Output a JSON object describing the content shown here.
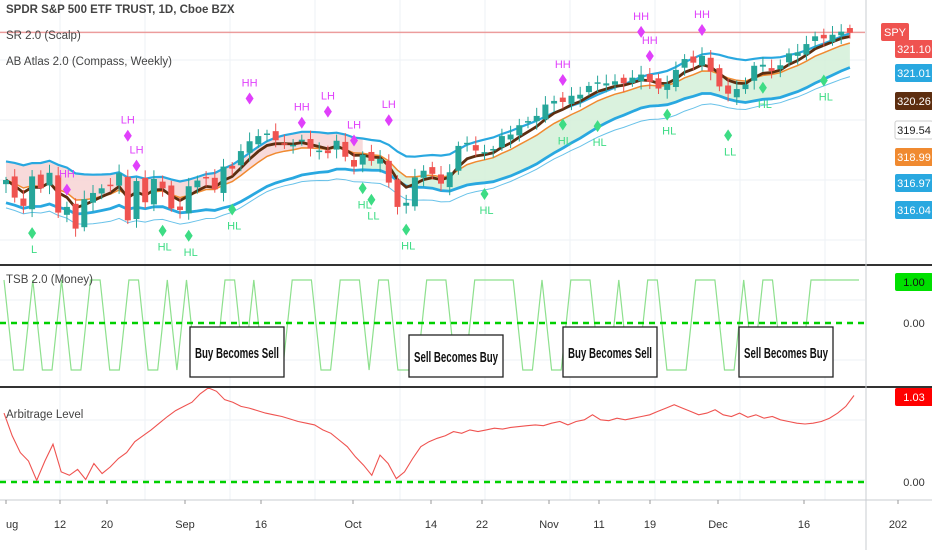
{
  "colors": {
    "up": "#26a69a",
    "down": "#ef5350",
    "pivot_high": "#e040fb",
    "pivot_low": "#3ddc84",
    "band_blue": "#29a8e0",
    "sma_dark": "#5d2e10",
    "ema_orange": "#f08a30",
    "green_dash": "#00d000",
    "tsb_line": "#8ee08e",
    "arb_line": "#ef5350",
    "fill_red": "#f7d3d3",
    "fill_green": "#d3f0d8"
  },
  "header": {
    "symbol_title": "SPDR S&P 500 ETF TRUST, 1D, Cboe BZX",
    "indicator_1": "SR 2.0 (Scalp)",
    "indicator_2": "AB Atlas 2.0 (Compass, Weekly)"
  },
  "panes": {
    "tsb_title": "TSB 2.0 (Money)",
    "arb_title": "Arbitrage Level"
  },
  "annotations": [
    "Buy Becomes Sell",
    "Sell Becomes Buy",
    "Buy Becomes Sell",
    "Sell Becomes Buy"
  ],
  "chart_data": {
    "type": "candlestick",
    "series_label": "SPY",
    "price_axis": {
      "ticks": [
        "321.10",
        "321.01",
        "320.26",
        "319.54",
        "318.99",
        "316.97",
        "316.04"
      ],
      "badges": [
        {
          "text": "SPY",
          "color": "#ef5350"
        },
        {
          "text": "321.10",
          "color": "#ef5350"
        },
        {
          "text": "321.01",
          "color": "#29a8e0"
        },
        {
          "text": "320.26",
          "color": "#5d2e10"
        },
        {
          "text": "319.54",
          "color": "#ffffff"
        },
        {
          "text": "318.99",
          "color": "#f08a30"
        },
        {
          "text": "316.97",
          "color": "#29a8e0"
        },
        {
          "text": "316.04",
          "color": "#29a8e0"
        }
      ]
    },
    "x_axis_labels": [
      "ug",
      "12",
      "20",
      "Sep",
      "16",
      "Oct",
      "14",
      "22",
      "Nov",
      "11",
      "19",
      "Dec",
      "16",
      "202"
    ],
    "close": [
      292.6,
      289.2,
      287.6,
      293.3,
      291.0,
      294.0,
      286.3,
      287.4,
      283.2,
      288.9,
      290.1,
      291.0,
      291.6,
      293.9,
      284.8,
      292.4,
      288.3,
      292.8,
      291.0,
      287.1,
      286.8,
      291.4,
      292.5,
      293.0,
      290.8,
      295.2,
      294.8,
      298.2,
      300.1,
      301.1,
      301.6,
      300.3,
      299.7,
      299.4,
      300.4,
      298.7,
      298.3,
      297.8,
      300.2,
      297.1,
      295.2,
      297.5,
      296.3,
      296.7,
      292.1,
      287.4,
      288.2,
      293.1,
      294.4,
      293.8,
      291.9,
      294.1,
      299.2,
      299.8,
      298.3,
      298.0,
      298.6,
      301.1,
      301.4,
      303.2,
      304.0,
      305.0,
      307.2,
      307.9,
      307.7,
      308.9,
      309.1,
      310.8,
      311.5,
      311.3,
      311.7,
      311.3,
      312.4,
      313.0,
      311.6,
      310.3,
      311.2,
      313.9,
      316.0,
      315.3,
      316.6,
      313.6,
      310.7,
      309.3,
      310.2,
      311.1,
      314.7,
      314.9,
      313.7,
      314.8,
      317.1,
      317.3,
      318.9,
      320.4,
      320.0,
      320.7,
      321.3,
      321.1
    ],
    "pivots": [
      {
        "type": "HH",
        "bar": 11
      },
      {
        "type": "LH",
        "bar": 22
      },
      {
        "type": "LH",
        "bar": 23
      },
      {
        "type": "HH",
        "bar": 43
      },
      {
        "type": "HH",
        "bar": 52
      },
      {
        "type": "LH",
        "bar": 57
      },
      {
        "type": "LH",
        "bar": 61
      },
      {
        "type": "LH",
        "bar": 68
      },
      {
        "type": "HH",
        "bar": 98
      },
      {
        "type": "HH",
        "bar": 112
      },
      {
        "type": "HH",
        "bar": 113
      },
      {
        "type": "HH",
        "bar": 123
      },
      {
        "type": "L",
        "bar": 4
      },
      {
        "type": "HL",
        "bar": 28
      },
      {
        "type": "HL",
        "bar": 33
      },
      {
        "type": "HL",
        "bar": 40
      },
      {
        "type": "HL",
        "bar": 63
      },
      {
        "type": "LL",
        "bar": 64
      },
      {
        "type": "HL",
        "bar": 70
      },
      {
        "type": "HL",
        "bar": 84
      },
      {
        "type": "HL",
        "bar": 99
      },
      {
        "type": "HL",
        "bar": 104
      },
      {
        "type": "HL",
        "bar": 117
      },
      {
        "type": "LL",
        "bar": 127
      },
      {
        "type": "HL",
        "bar": 134
      },
      {
        "type": "HL",
        "bar": 145
      }
    ],
    "tsb": {
      "latest_value": "1.00",
      "dashed_level": "0.00",
      "values": [
        1,
        0,
        0,
        1,
        0,
        0,
        1,
        0,
        0,
        1,
        1,
        0,
        0,
        1,
        1,
        0,
        0,
        1,
        0,
        1,
        0,
        0,
        0,
        1,
        1,
        0,
        1,
        0,
        0,
        0,
        1,
        1,
        1,
        0,
        0,
        1,
        1,
        1,
        0,
        1,
        1,
        0,
        0,
        0,
        1,
        1,
        1,
        0,
        0,
        1,
        1,
        1,
        1,
        1,
        0,
        0,
        1,
        0,
        0,
        1,
        1,
        1,
        0,
        0,
        1,
        0,
        0,
        1,
        1,
        0,
        0,
        0,
        1,
        1,
        1,
        0,
        0,
        1,
        0,
        1,
        1,
        0,
        0,
        0,
        1,
        1,
        1,
        1,
        1,
        1
      ]
    },
    "arbitrage": {
      "latest_value": "1.03",
      "dashed_level": "0.00",
      "values": [
        0.82,
        0.55,
        0.35,
        0.25,
        0.02,
        0.25,
        0.45,
        0.12,
        0.08,
        0.15,
        0.03,
        0.22,
        0.1,
        0.18,
        0.28,
        0.35,
        0.48,
        0.55,
        0.62,
        0.7,
        0.78,
        0.85,
        0.9,
        0.95,
        1.05,
        1.12,
        1.08,
        0.98,
        0.95,
        0.9,
        0.88,
        0.85,
        0.82,
        0.8,
        0.78,
        0.75,
        0.72,
        0.7,
        0.68,
        0.62,
        0.58,
        0.5,
        0.42,
        0.3,
        0.2,
        0.08,
        0.32,
        0.22,
        0.04,
        0.12,
        0.28,
        0.42,
        0.48,
        0.52,
        0.55,
        0.6,
        0.58,
        0.62,
        0.6,
        0.62,
        0.64,
        0.63,
        0.65,
        0.66,
        0.67,
        0.68,
        0.67,
        0.7,
        0.72,
        0.68,
        0.72,
        0.74,
        0.8,
        0.74,
        0.73,
        0.76,
        0.74,
        0.76,
        0.78,
        0.8,
        0.84,
        0.88,
        0.92,
        0.88,
        0.84,
        0.8,
        0.82,
        0.86,
        0.8,
        0.78,
        0.82,
        0.77,
        0.8,
        0.76,
        0.78,
        0.74,
        0.72,
        0.7,
        0.69,
        0.7,
        0.72,
        0.76,
        0.82,
        0.9,
        1.03
      ]
    }
  }
}
